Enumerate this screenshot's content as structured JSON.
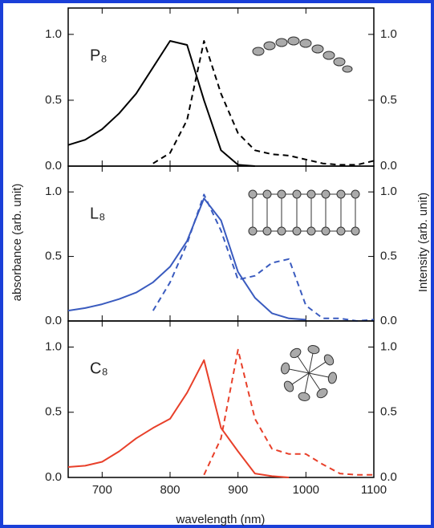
{
  "xlabel": "wavelength (nm)",
  "ylabel": "absorbance (arb. unit)",
  "y2label": "Intensity (arb. unit)",
  "chart_data": [
    {
      "type": "line",
      "title": "P₈",
      "x": [
        650,
        675,
        700,
        725,
        750,
        775,
        800,
        825,
        850,
        875,
        900,
        925,
        950,
        975,
        1000,
        1025,
        1050,
        1075,
        1100
      ],
      "series": [
        {
          "color": "#000000",
          "linestyle": "solid",
          "values": [
            0.16,
            0.2,
            0.28,
            0.4,
            0.55,
            0.75,
            0.95,
            0.92,
            0.5,
            0.12,
            0.01,
            0,
            null,
            null,
            null,
            null,
            null,
            null,
            null
          ]
        },
        {
          "color": "#000000",
          "linestyle": "dashed",
          "axis": "y2",
          "values": [
            null,
            null,
            null,
            null,
            null,
            0.02,
            0.1,
            0.35,
            0.95,
            0.55,
            0.25,
            0.12,
            0.09,
            0.08,
            0.05,
            0.02,
            0.01,
            0.01,
            0.04
          ]
        }
      ],
      "xlim": [
        650,
        1100
      ],
      "xticks": [
        700,
        800,
        900,
        1000,
        1100
      ],
      "ylim": [
        0,
        1.2
      ],
      "yticks": [
        {
          "value": 0,
          "label": "0.0"
        },
        {
          "value": 0.5,
          "label": "0.5"
        },
        {
          "value": 1,
          "label": "1.0"
        }
      ],
      "y2lim": [
        0,
        1.2
      ],
      "y2ticks": [
        {
          "value": 0,
          "label": "0.0"
        },
        {
          "value": 0.5,
          "label": "0.5"
        },
        {
          "value": 1,
          "label": "1.0"
        }
      ]
    },
    {
      "type": "line",
      "title": "L₈",
      "x": [
        650,
        675,
        700,
        725,
        750,
        775,
        800,
        825,
        850,
        875,
        900,
        925,
        950,
        975,
        1000,
        1025,
        1050,
        1075,
        1100
      ],
      "series": [
        {
          "color": "#3a5bbf",
          "linestyle": "solid",
          "values": [
            0.08,
            0.1,
            0.13,
            0.17,
            0.22,
            0.3,
            0.42,
            0.62,
            0.95,
            0.78,
            0.38,
            0.18,
            0.06,
            0.02,
            0.01,
            null,
            null,
            null,
            null
          ]
        },
        {
          "color": "#3a5bbf",
          "linestyle": "dashed",
          "axis": "y2",
          "values": [
            null,
            null,
            null,
            null,
            null,
            0.08,
            0.3,
            0.6,
            0.98,
            0.7,
            0.32,
            0.35,
            0.45,
            0.48,
            0.12,
            0.02,
            0.02,
            0,
            0.01
          ]
        }
      ],
      "xlim": [
        650,
        1100
      ],
      "xticks": [
        700,
        800,
        900,
        1000,
        1100
      ],
      "ylim": [
        0,
        1.2
      ],
      "yticks": [
        {
          "value": 0,
          "label": "0.0"
        },
        {
          "value": 0.5,
          "label": "0.5"
        },
        {
          "value": 1,
          "label": "1.0"
        }
      ],
      "y2lim": [
        0,
        1.2
      ],
      "y2ticks": [
        {
          "value": 0,
          "label": "0.0"
        },
        {
          "value": 0.5,
          "label": "0.5"
        },
        {
          "value": 1,
          "label": "1.0"
        }
      ]
    },
    {
      "type": "line",
      "title": "C₈",
      "x": [
        650,
        675,
        700,
        725,
        750,
        775,
        800,
        825,
        850,
        875,
        900,
        925,
        950,
        975,
        1000,
        1025,
        1050,
        1075,
        1100
      ],
      "series": [
        {
          "color": "#e8402a",
          "linestyle": "solid",
          "values": [
            0.08,
            0.09,
            0.12,
            0.2,
            0.3,
            0.38,
            0.45,
            0.65,
            0.9,
            0.38,
            0.2,
            0.03,
            0.01,
            0,
            null,
            null,
            null,
            null,
            null
          ]
        },
        {
          "color": "#e8402a",
          "linestyle": "dashed",
          "axis": "y2",
          "values": [
            null,
            null,
            null,
            null,
            null,
            null,
            null,
            null,
            0.02,
            0.3,
            0.98,
            0.45,
            0.22,
            0.18,
            0.18,
            0.1,
            0.03,
            0.02,
            0.02
          ]
        }
      ],
      "xlim": [
        650,
        1100
      ],
      "xticks": [
        700,
        800,
        900,
        1000,
        1100
      ],
      "ylim": [
        0,
        1.2
      ],
      "yticks": [
        {
          "value": 0,
          "label": "0.0"
        },
        {
          "value": 0.5,
          "label": "0.5"
        },
        {
          "value": 1,
          "label": "1.0"
        }
      ],
      "y2lim": [
        0,
        1.2
      ],
      "y2ticks": [
        {
          "value": 0,
          "label": "0.0"
        },
        {
          "value": 0.5,
          "label": "0.5"
        },
        {
          "value": 1,
          "label": "1.0"
        }
      ]
    }
  ]
}
